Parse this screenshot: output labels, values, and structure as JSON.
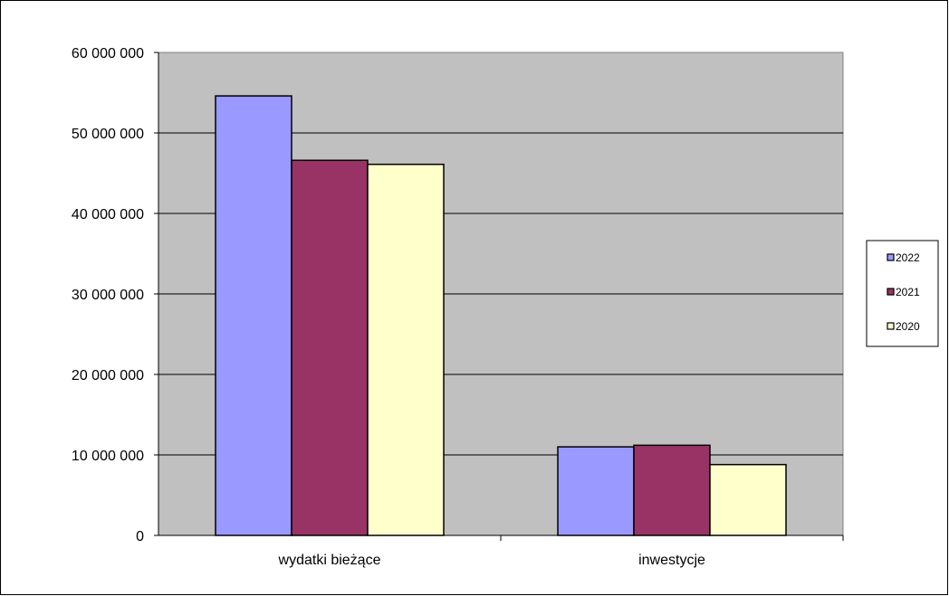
{
  "chart_data": {
    "type": "bar",
    "title": "",
    "xlabel": "",
    "ylabel": "",
    "categories": [
      "wydatki bieżące",
      "inwestycje"
    ],
    "series": [
      {
        "name": "2022",
        "color": "#9999ff",
        "values": [
          54600000,
          11000000
        ]
      },
      {
        "name": "2021",
        "color": "#993366",
        "values": [
          46600000,
          11200000
        ]
      },
      {
        "name": "2020",
        "color": "#ffffcc",
        "values": [
          46100000,
          8800000
        ]
      }
    ],
    "ylim": [
      0,
      60000000
    ],
    "yticks": [
      0,
      10000000,
      20000000,
      30000000,
      40000000,
      50000000,
      60000000
    ],
    "ytick_labels": [
      "0",
      "10 000 000",
      "20 000 000",
      "30 000 000",
      "40 000 000",
      "50 000 000",
      "60 000 000"
    ],
    "grid": true,
    "plot_background": "#c0c0c0",
    "legend_position": "right"
  }
}
